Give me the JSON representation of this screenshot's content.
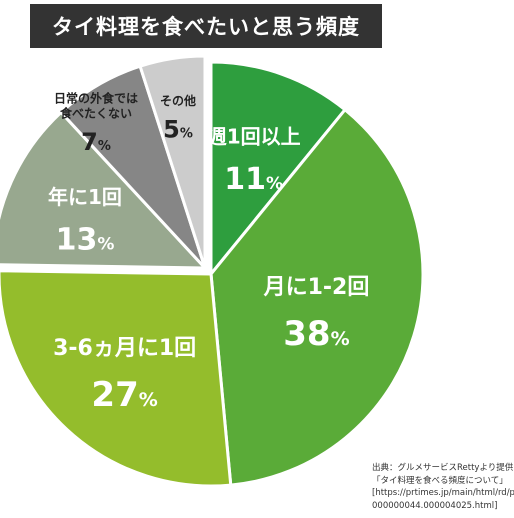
{
  "title": "タイ料理を食べたいと思う頻度",
  "chart_data": {
    "type": "pie",
    "title": "タイ料理を食べたいと思う頻度",
    "unit": "%",
    "slices": [
      {
        "label": "週1回以上",
        "value": 11,
        "color": "#2e9e3e",
        "text_color": "#ffffff"
      },
      {
        "label": "月に1-2回",
        "value": 38,
        "color": "#5aab38",
        "text_color": "#ffffff"
      },
      {
        "label": "3-6ヵ月に1回",
        "value": 27,
        "color": "#94bd2c",
        "text_color": "#ffffff"
      },
      {
        "label": "年に1回",
        "value": 13,
        "color": "#98a88f",
        "text_color": "#ffffff"
      },
      {
        "label": "日常の外食では\n食べたくない",
        "value": 7,
        "color": "#868686",
        "text_color": "#222222"
      },
      {
        "label": "その他",
        "value": 5,
        "color": "#cccccc",
        "text_color": "#222222"
      }
    ]
  },
  "source": {
    "line1": "出典：グルメサービスRettyより提供",
    "line2": "「タイ料理を食べる頻度について」",
    "line3": "[https://prtimes.jp/main/html/rd/p/",
    "line4": "000000044.000004025.html]"
  }
}
